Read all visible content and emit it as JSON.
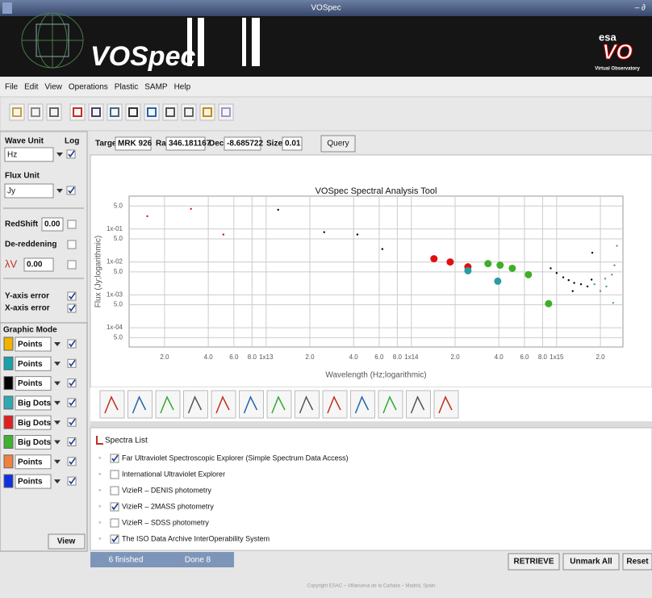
{
  "window": {
    "title": "VOSpec",
    "controls": "– ∂"
  },
  "banner": {
    "logo": "VOSpec",
    "esa": "esa",
    "vo": "VO",
    "vo_sub": "Virtual Observatory"
  },
  "menu": [
    "File",
    "Edit",
    "View",
    "Operations",
    "Plastic",
    "SAMP",
    "Help"
  ],
  "sidebar": {
    "wave_unit_label": "Wave Unit",
    "log_label": "Log",
    "wave_unit": "Hz",
    "wave_log": true,
    "flux_unit_label": "Flux Unit",
    "flux_unit": "Jy",
    "flux_log": true,
    "redshift_label": "RedShift",
    "redshift": "0.00",
    "redshift_checked": false,
    "dereddening_label": "De-reddening",
    "dereddening_checked": false,
    "av_label": "λV",
    "av_value": "0.00",
    "av_checked": false,
    "y_error_label": "Y-axis error",
    "y_error_checked": true,
    "x_error_label": "X-axis error",
    "x_error_checked": true,
    "graphic_mode_label": "Graphic Mode",
    "graphic_modes": [
      {
        "color": "#f0b400",
        "mode": "Points",
        "checked": true
      },
      {
        "color": "#1aa0a8",
        "mode": "Points",
        "checked": true
      },
      {
        "color": "#000000",
        "mode": "Points",
        "checked": true
      },
      {
        "color": "#30a8b0",
        "mode": "Big Dots",
        "checked": true
      },
      {
        "color": "#e02020",
        "mode": "Big Dots",
        "checked": true
      },
      {
        "color": "#40b030",
        "mode": "Big Dots",
        "checked": true
      },
      {
        "color": "#f08040",
        "mode": "Points",
        "checked": true
      },
      {
        "color": "#1030e0",
        "mode": "Points",
        "checked": true
      }
    ],
    "view_button": "View"
  },
  "query": {
    "target_label": "Target",
    "target": "MRK 926",
    "ra_label": "Ra",
    "ra": "346.181167",
    "dec_label": "Dec",
    "dec": "-8.685722",
    "size_label": "Size",
    "size": "0.01",
    "button": "Query"
  },
  "plot": {
    "type": "scatter",
    "title": "VOSpec Spectral Analysis Tool",
    "xlabel": "Wavelength (Hz;logarithmic)",
    "ylabel": "Flux (Jy;logarithmic)",
    "xlog": true,
    "ylog": true,
    "grid": true,
    "xlim": [
      1140000000000.0,
      2860000000000000.0
    ],
    "ylim": [
      2.6e-05,
      1
    ],
    "xticks": [
      {
        "value": 2000000000000.0,
        "label": "2.0"
      },
      {
        "value": 4000000000000.0,
        "label": "4.0"
      },
      {
        "value": 6000000000000.0,
        "label": "6.0"
      },
      {
        "value": 8000000000000.0,
        "label": "8.0"
      },
      {
        "value": 10000000000000.0,
        "label": "1x13"
      },
      {
        "value": 20000000000000.0,
        "label": "2.0"
      },
      {
        "value": 40000000000000.0,
        "label": "4.0"
      },
      {
        "value": 60000000000000.0,
        "label": "6.0"
      },
      {
        "value": 80000000000000.0,
        "label": "8.0"
      },
      {
        "value": 100000000000000.0,
        "label": "1x14"
      },
      {
        "value": 200000000000000.0,
        "label": "2.0"
      },
      {
        "value": 400000000000000.0,
        "label": "4.0"
      },
      {
        "value": 600000000000000.0,
        "label": "6.0"
      },
      {
        "value": 800000000000000.0,
        "label": "8.0"
      },
      {
        "value": 1000000000000000.0,
        "label": "1x15"
      },
      {
        "value": 2000000000000000.0,
        "label": "2.0"
      }
    ],
    "yticks": [
      {
        "value": 0.5,
        "label": "5.0"
      },
      {
        "value": 0.1,
        "label": "1x-01"
      },
      {
        "value": 0.05,
        "label": "5.0"
      },
      {
        "value": 0.01,
        "label": "1x-02"
      },
      {
        "value": 0.005,
        "label": "5.0"
      },
      {
        "value": 0.001,
        "label": "1x-03"
      },
      {
        "value": 0.0005,
        "label": "5.0"
      },
      {
        "value": 0.0001,
        "label": "1x-04"
      },
      {
        "value": 5e-05,
        "label": "5.0"
      }
    ],
    "series": [
      {
        "color": "#e01010",
        "marker": "Points",
        "x": [
          1520000000000.0,
          3040000000000.0,
          5080000000000.0
        ],
        "y": [
          0.245,
          0.41,
          0.068
        ]
      },
      {
        "color": "#000000",
        "marker": "Points",
        "x": [
          12100000000000.0,
          25100000000000.0,
          42500000000000.0,
          63100000000000.0
        ],
        "y": [
          0.385,
          0.08,
          0.068,
          0.0246
        ]
      },
      {
        "color": "#e01010",
        "marker": "Big Dots",
        "x": [
          143000000000000.0,
          185000000000000.0,
          245000000000000.0
        ],
        "y": [
          0.0125,
          0.01,
          0.0071
        ]
      },
      {
        "color": "#2a9aa5",
        "marker": "Big Dots",
        "x": [
          245000000000000.0,
          393000000000000.0
        ],
        "y": [
          0.0054,
          0.0026
        ]
      },
      {
        "color": "#3fae2a",
        "marker": "Big Dots",
        "x": [
          337000000000000.0,
          408000000000000.0,
          495000000000000.0,
          639000000000000.0,
          880000000000000.0
        ],
        "y": [
          0.0089,
          0.008,
          0.0064,
          0.0041,
          0.00054
        ]
      },
      {
        "color": "#000000",
        "marker": "Points",
        "x": [
          910000000000000.0,
          1000000000000000.0,
          1110000000000000.0,
          1210000000000000.0,
          1290000000000000.0,
          1320000000000000.0,
          1470000000000000.0,
          1630000000000000.0,
          1740000000000000.0,
          1760000000000000.0
        ],
        "y": [
          0.0064,
          0.0046,
          0.0034,
          0.0028,
          0.0013,
          0.0023,
          0.0021,
          0.0018,
          0.0029,
          0.019
        ]
      },
      {
        "color": "#4f9a9a",
        "marker": "Points",
        "x": [
          1820000000000000.0,
          2000000000000000.0,
          2160000000000000.0,
          2200000000000000.0,
          2400000000000000.0,
          2450000000000000.0,
          2500000000000000.0,
          2600000000000000.0
        ],
        "y": [
          0.0021,
          0.0013,
          0.0031,
          0.0018,
          0.0041,
          0.00057,
          0.0079,
          0.031
        ]
      }
    ]
  },
  "tree": {
    "root": "Spectra List",
    "items": [
      {
        "label": "Far Ultraviolet Spectroscopic Explorer (Simple Spectrum Data Access)",
        "checked": true
      },
      {
        "label": "International Ultraviolet Explorer",
        "checked": false
      },
      {
        "label": "VizieR – DENIS photometry",
        "checked": false
      },
      {
        "label": "VizieR – 2MASS photometry",
        "checked": true
      },
      {
        "label": "VizieR – SDSS photometry",
        "checked": false
      },
      {
        "label": "The ISO Data Archive InterOperability System",
        "checked": true
      }
    ]
  },
  "status": {
    "finished": "6 finished",
    "done": "Done 8"
  },
  "buttons": [
    "RETRIEVE",
    "Unmark All",
    "Reset"
  ],
  "footer": "Copyright ESAC – Villanueva de la Cañada – Madrid, Spain"
}
